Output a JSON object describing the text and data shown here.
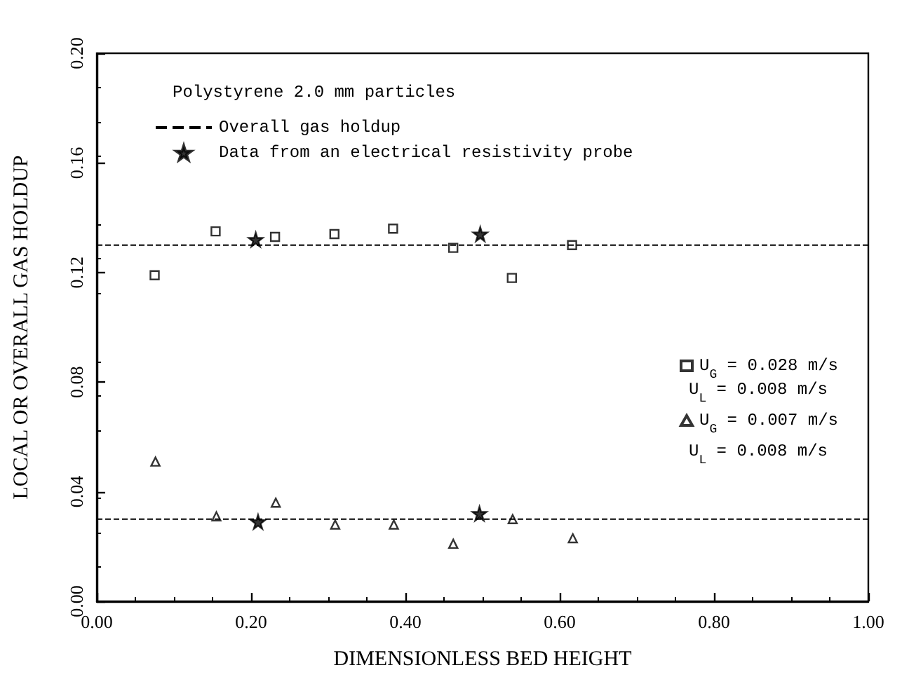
{
  "chart_data": {
    "type": "scatter",
    "xlabel": "DIMENSIONLESS BED HEIGHT",
    "ylabel": "LOCAL OR OVERALL GAS HOLDUP",
    "legend_title": "Polystyrene 2.0 mm particles",
    "annotations": [
      "U$_{L}$ = 0.008 m/s",
      "U$_{L}$ = 0.008 m/s"
    ],
    "legend": "top left",
    "grid": false,
    "xlim": [
      0,
      1
    ],
    "xticks": [
      {
        "value": 0,
        "label": "0.00"
      },
      {
        "value": 0.2,
        "label": "0.20"
      },
      {
        "value": 0.4,
        "label": "0.40"
      },
      {
        "value": 0.6,
        "label": "0.60"
      },
      {
        "value": 0.8,
        "label": "0.80"
      },
      {
        "value": 1,
        "label": "1.00"
      }
    ],
    "ylim": [
      0,
      0.2
    ],
    "yticks": [
      {
        "value": 0,
        "label": "0.00"
      },
      {
        "value": 0.04,
        "label": "0.04"
      },
      {
        "value": 0.08,
        "label": "0.08"
      },
      {
        "value": 0.12,
        "label": "0.12"
      },
      {
        "value": 0.16,
        "label": "0.16"
      },
      {
        "value": 0.2,
        "label": "0.20"
      }
    ],
    "series": [
      {
        "name": "Overall gas holdup",
        "type": "line",
        "color": "#000000",
        "line_style": "dashed",
        "marker": "none",
        "x": [
          0,
          1
        ],
        "values": [
          0.13,
          0.13
        ]
      },
      {
        "type": "line",
        "color": "#000000",
        "line_style": "dashed",
        "marker": "none",
        "x": [
          0,
          1
        ],
        "values": [
          0.03,
          0.03
        ]
      },
      {
        "name": "Data from an electrical resistivity probe",
        "color": "#000000",
        "marker": "star",
        "x": [
          0.206,
          0.497,
          0.209,
          0.496
        ],
        "values": [
          0.132,
          0.134,
          0.029,
          0.032
        ]
      },
      {
        "name": "U$_{G}$ = 0.028 m/s",
        "color": "#000000",
        "marker": "square",
        "x": [
          0.075,
          0.154,
          0.231,
          0.308,
          0.384,
          0.462,
          0.538,
          0.616
        ],
        "values": [
          0.119,
          0.135,
          0.133,
          0.134,
          0.136,
          0.129,
          0.118,
          0.13
        ]
      },
      {
        "name": "U$_{G}$ = 0.007 m/s",
        "color": "#000000",
        "marker": "triangle",
        "x": [
          0.076,
          0.155,
          0.232,
          0.309,
          0.385,
          0.462,
          0.539,
          0.617
        ],
        "values": [
          0.051,
          0.031,
          0.036,
          0.028,
          0.028,
          0.021,
          0.03,
          0.023
        ]
      }
    ]
  }
}
